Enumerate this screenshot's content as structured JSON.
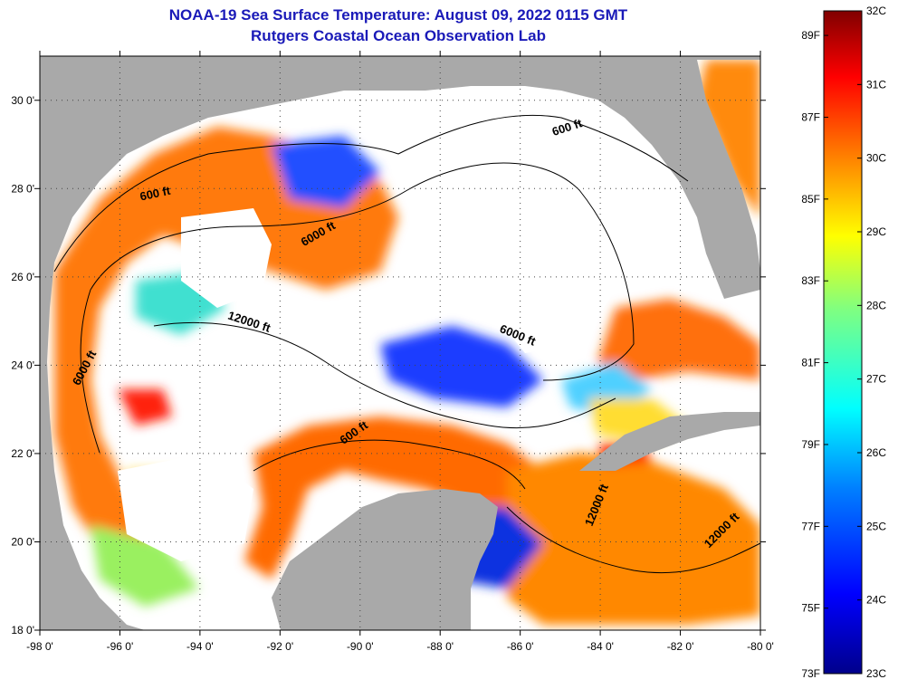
{
  "title": {
    "line1": "NOAA-19 Sea Surface Temperature:  August 09, 2022 0115 GMT",
    "line2": "Rutgers Coastal Ocean Observation Lab"
  },
  "map": {
    "lon_range": [
      -98,
      -80
    ],
    "lat_range": [
      18,
      31
    ],
    "x_ticks": [
      {
        "lon": -98,
        "label": "-98 0'"
      },
      {
        "lon": -96,
        "label": "-96 0'"
      },
      {
        "lon": -94,
        "label": "-94 0'"
      },
      {
        "lon": -92,
        "label": "-92 0'"
      },
      {
        "lon": -90,
        "label": "-90 0'"
      },
      {
        "lon": -88,
        "label": "-88 0'"
      },
      {
        "lon": -86,
        "label": "-86 0'"
      },
      {
        "lon": -84,
        "label": "-84 0'"
      },
      {
        "lon": -82,
        "label": "-82 0'"
      },
      {
        "lon": -80,
        "label": "-80 0'"
      }
    ],
    "y_ticks": [
      {
        "lat": 18,
        "label": "18 0'"
      },
      {
        "lat": 20,
        "label": "20 0'"
      },
      {
        "lat": 22,
        "label": "22 0'"
      },
      {
        "lat": 24,
        "label": "24 0'"
      },
      {
        "lat": 26,
        "label": "26 0'"
      },
      {
        "lat": 28,
        "label": "28 0'"
      },
      {
        "lat": 30,
        "label": "30 0'"
      }
    ],
    "contour_labels": [
      {
        "text": "600 ft",
        "lon": -84.8,
        "lat": 29.3,
        "angle": -18
      },
      {
        "text": "600 ft",
        "lon": -95.1,
        "lat": 27.8,
        "angle": -12
      },
      {
        "text": "6000 ft",
        "lon": -91.0,
        "lat": 26.9,
        "angle": -30
      },
      {
        "text": "12000 ft",
        "lon": -92.8,
        "lat": 24.9,
        "angle": 18
      },
      {
        "text": "6000 ft",
        "lon": -86.1,
        "lat": 24.6,
        "angle": 22
      },
      {
        "text": "6000 ft",
        "lon": -96.8,
        "lat": 23.9,
        "angle": -62
      },
      {
        "text": "600 ft",
        "lon": -90.1,
        "lat": 22.4,
        "angle": -35
      },
      {
        "text": "12000 ft",
        "lon": -84.0,
        "lat": 20.8,
        "angle": -68
      },
      {
        "text": "12000 ft",
        "lon": -80.9,
        "lat": 20.2,
        "angle": -45
      }
    ],
    "colors": {
      "land": "#a9a9a9",
      "cloud": "#ffffff",
      "grid": "#555555"
    }
  },
  "colorbar": {
    "min_c": 23,
    "max_c": 32,
    "celsius_ticks": [
      "32C",
      "31C",
      "30C",
      "29C",
      "28C",
      "27C",
      "26C",
      "25C",
      "24C",
      "23C"
    ],
    "fahrenheit_ticks": [
      "89F",
      "87F",
      "85F",
      "83F",
      "81F",
      "79F",
      "77F",
      "75F",
      "73F"
    ],
    "fahrenheit_values": [
      89,
      87,
      85,
      83,
      81,
      79,
      77,
      75,
      73
    ],
    "stops": [
      "#00008b",
      "#0000ff",
      "#0080ff",
      "#00ffff",
      "#80ff80",
      "#ffff00",
      "#ff8000",
      "#ff0000",
      "#800000"
    ]
  }
}
